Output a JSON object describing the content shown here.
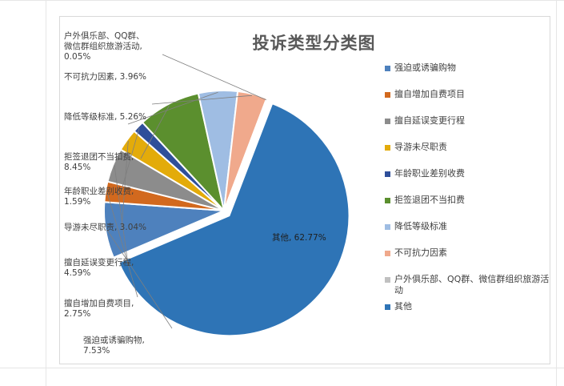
{
  "chart_data": {
    "type": "pie",
    "title": "投诉类型分类图",
    "slices": [
      {
        "label": "强迫或诱骗购物",
        "value": 7.53,
        "color": "#4e81bd",
        "data_label": "强迫或诱骗购物,\n7.53%"
      },
      {
        "label": "擅自增加自费项目",
        "value": 2.75,
        "color": "#d2691e",
        "data_label": "擅自增加自费项目,\n2.75%"
      },
      {
        "label": "擅自延误变更行程",
        "value": 4.59,
        "color": "#8c8c8c",
        "data_label": "擅自延误变更行程,\n4.59%"
      },
      {
        "label": "导游未尽职责",
        "value": 3.04,
        "color": "#e3ab0a",
        "data_label": "导游未尽职责, 3.04%"
      },
      {
        "label": "年龄职业差别收费",
        "value": 1.59,
        "color": "#2f4f9a",
        "data_label": "年龄职业差别收费,\n1.59%"
      },
      {
        "label": "拒签退团不当扣费",
        "value": 8.45,
        "color": "#5b8f2e",
        "data_label": "拒签退团不当扣费,\n8.45%"
      },
      {
        "label": "降低等级标准",
        "value": 5.26,
        "color": "#9fbde3",
        "data_label": "降低等级标准, 5.26%"
      },
      {
        "label": "不可抗力因素",
        "value": 3.96,
        "color": "#f0a98c",
        "data_label": "不可抗力因素, 3.96%"
      },
      {
        "label": "户外俱乐部、QQ群、微信群组织旅游活动",
        "value": 0.05,
        "color": "#c0c0c0",
        "data_label": "户外俱乐部、QQ群、\n微信群组织旅游活动,\n0.05%"
      },
      {
        "label": "其他",
        "value": 62.77,
        "color": "#2e74b6",
        "data_label": "其他, 62.77%"
      }
    ],
    "legend_position": "right"
  }
}
